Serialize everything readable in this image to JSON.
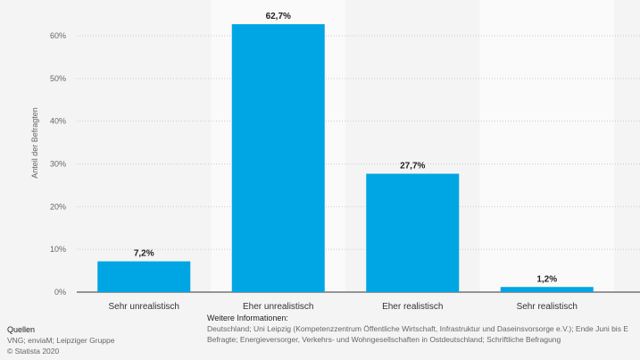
{
  "chart_data": {
    "type": "bar",
    "categories": [
      "Sehr unrealistisch",
      "Eher unrealistisch",
      "Eher realistisch",
      "Sehr realistisch"
    ],
    "values": [
      7.2,
      62.7,
      27.7,
      1.2
    ],
    "data_labels": [
      "7,2%",
      "62,7%",
      "27,7%",
      "1,2%"
    ],
    "ylabel": "Anteil der Befragten",
    "ylim": [
      0,
      65
    ],
    "yticks": [
      0,
      10,
      20,
      30,
      40,
      50,
      60
    ],
    "ytick_labels": [
      "0%",
      "10%",
      "20%",
      "30%",
      "40%",
      "50%",
      "60%"
    ],
    "grid": true,
    "bar_color": "#00a5e3"
  },
  "footer": {
    "sources_title": "Quellen",
    "sources": "VNG; enviaM; Leipziger Gruppe",
    "copyright": "© Statista 2020",
    "info_title": "Weitere Informationen:",
    "info_line1": "Deutschland; Uni Leipzig (Kompetenzzentrum Öffentliche Wirtschaft, Infrastruktur und Daseinsvorsorge e.V.); Ende Juni bis E",
    "info_line2": "Befragte; Energieversorger, Verkehrs- und Wohngesellschaften in Ostdeutschland; Schriftliche Befragung"
  }
}
